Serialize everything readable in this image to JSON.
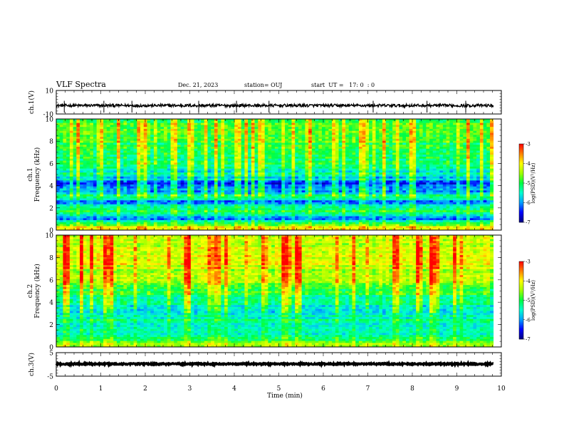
{
  "header": {
    "title": "VLF Spectra",
    "date": "Dec. 21, 2023",
    "station": "station= OUJ",
    "start": "start  UT =   17: 0  : 0"
  },
  "colors": {
    "spectrum_scale": [
      "#000080",
      "#0000ff",
      "#00a0ff",
      "#00ffd0",
      "#00ff40",
      "#a0ff00",
      "#ffff00",
      "#ff8000",
      "#ff0000",
      "#ffffff"
    ]
  },
  "chart_data": [
    {
      "type": "line",
      "name": "ch.1 waveform",
      "ylabel": "ch.1(V)",
      "ylim": [
        -10,
        10
      ],
      "yticks": [
        "10",
        "-10"
      ],
      "xlim": [
        0,
        10
      ],
      "level": -2.8,
      "noise_amplitude": 1.2,
      "spike_times": [
        0.18,
        1.07,
        1.7,
        3.2,
        4.05,
        4.78,
        7.12,
        8.33,
        9.2
      ]
    },
    {
      "type": "heatmap",
      "name": "ch.1 spectrogram",
      "ylabel": "ch.1\nFrequency (kHz)",
      "ylim": [
        0,
        10
      ],
      "yticks": [
        "0",
        "2",
        "4",
        "6",
        "8",
        "10"
      ],
      "xlim": [
        0,
        10
      ],
      "colorbar": {
        "label": "log(PSD)(V²/Hz)",
        "range": [
          -7,
          -3
        ],
        "ticks": [
          "-3",
          "-4",
          "-5",
          "-6",
          "-7"
        ]
      },
      "frequency_profile_log_psd": [
        {
          "f": 0.3,
          "v": -4.2
        },
        {
          "f": 0.6,
          "v": -5.2
        },
        {
          "f": 1.0,
          "v": -6.2
        },
        {
          "f": 1.6,
          "v": -5.0
        },
        {
          "f": 2.1,
          "v": -5.6
        },
        {
          "f": 2.6,
          "v": -6.0
        },
        {
          "f": 3.0,
          "v": -5.2
        },
        {
          "f": 3.5,
          "v": -5.8
        },
        {
          "f": 4.0,
          "v": -6.4
        },
        {
          "f": 5.0,
          "v": -5.5
        },
        {
          "f": 6.0,
          "v": -5.2
        },
        {
          "f": 7.0,
          "v": -5.1
        },
        {
          "f": 8.0,
          "v": -4.9
        },
        {
          "f": 9.0,
          "v": -4.8
        },
        {
          "f": 10.0,
          "v": -4.8
        }
      ]
    },
    {
      "type": "heatmap",
      "name": "ch.2 spectrogram",
      "ylabel": "ch.2\nFrequency (kHz)",
      "ylim": [
        0,
        10
      ],
      "yticks": [
        "0",
        "2",
        "4",
        "6",
        "8",
        "10"
      ],
      "xlim": [
        0,
        10
      ],
      "colorbar": {
        "label": "log(PSD)(V²/Hz)",
        "range": [
          -7,
          -3
        ],
        "ticks": [
          "-3",
          "-4",
          "-5",
          "-6",
          "-7"
        ]
      },
      "frequency_profile_log_psd": [
        {
          "f": 0.3,
          "v": -4.6
        },
        {
          "f": 1.0,
          "v": -5.4
        },
        {
          "f": 1.5,
          "v": -5.2
        },
        {
          "f": 2.0,
          "v": -5.6
        },
        {
          "f": 2.5,
          "v": -5.3
        },
        {
          "f": 3.0,
          "v": -5.8
        },
        {
          "f": 4.0,
          "v": -5.3
        },
        {
          "f": 5.0,
          "v": -4.9
        },
        {
          "f": 6.0,
          "v": -4.5
        },
        {
          "f": 7.0,
          "v": -4.3
        },
        {
          "f": 8.0,
          "v": -4.1
        },
        {
          "f": 9.0,
          "v": -4.3
        },
        {
          "f": 10.0,
          "v": -4.4
        }
      ]
    },
    {
      "type": "line",
      "name": "ch.3 waveform",
      "ylabel": "ch.3(V)",
      "ylim": [
        -5,
        5
      ],
      "yticks": [
        "5",
        "-5"
      ],
      "xlim": [
        0,
        10
      ],
      "level": 0.2,
      "noise_amplitude": 0.3
    }
  ],
  "xaxis": {
    "label": "Time (min)",
    "ticks": [
      "0",
      "1",
      "2",
      "3",
      "4",
      "5",
      "6",
      "7",
      "8",
      "9",
      "10"
    ],
    "data_end": 9.82
  }
}
